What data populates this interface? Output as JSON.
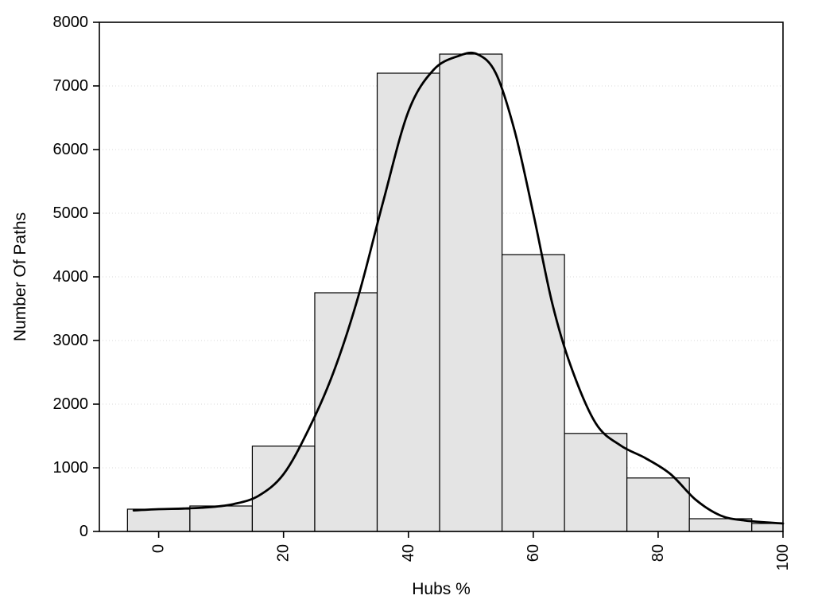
{
  "chart_data": {
    "type": "bar",
    "subtype": "histogram-with-density-curve",
    "title": "",
    "xlabel": "Hubs %",
    "ylabel": "Number Of Paths",
    "xlim": [
      -9.5,
      100
    ],
    "ylim": [
      0,
      8000
    ],
    "x_ticks": [
      0,
      20,
      40,
      60,
      80,
      100
    ],
    "y_ticks": [
      0,
      1000,
      2000,
      3000,
      4000,
      5000,
      6000,
      7000,
      8000
    ],
    "x_tick_rotation": -90,
    "grid": "horizontal-dotted",
    "legend": "none",
    "colors": {
      "bar_fill": "#e4e4e4",
      "bar_stroke": "#000000",
      "curve": "#000000",
      "frame": "#000000",
      "grid": "#d8d8d8",
      "background": "#ffffff"
    },
    "bins": [
      {
        "x0": -5,
        "x1": 5,
        "count": 350
      },
      {
        "x0": 5,
        "x1": 15,
        "count": 400
      },
      {
        "x0": 15,
        "x1": 25,
        "count": 1340
      },
      {
        "x0": 25,
        "x1": 35,
        "count": 3750
      },
      {
        "x0": 35,
        "x1": 45,
        "count": 7200
      },
      {
        "x0": 45,
        "x1": 55,
        "count": 7500
      },
      {
        "x0": 55,
        "x1": 65,
        "count": 4350
      },
      {
        "x0": 65,
        "x1": 75,
        "count": 1540
      },
      {
        "x0": 75,
        "x1": 85,
        "count": 840
      },
      {
        "x0": 85,
        "x1": 95,
        "count": 200
      },
      {
        "x0": 95,
        "x1": 100,
        "count": 125
      }
    ],
    "density_curve": [
      [
        -4,
        330
      ],
      [
        0,
        350
      ],
      [
        4,
        360
      ],
      [
        8,
        380
      ],
      [
        12,
        430
      ],
      [
        16,
        560
      ],
      [
        20,
        900
      ],
      [
        24,
        1600
      ],
      [
        28,
        2500
      ],
      [
        32,
        3700
      ],
      [
        36,
        5200
      ],
      [
        40,
        6600
      ],
      [
        44,
        7250
      ],
      [
        48,
        7470
      ],
      [
        51,
        7500
      ],
      [
        54,
        7200
      ],
      [
        57,
        6300
      ],
      [
        60,
        5000
      ],
      [
        63,
        3600
      ],
      [
        66,
        2600
      ],
      [
        70,
        1700
      ],
      [
        74,
        1350
      ],
      [
        78,
        1150
      ],
      [
        82,
        900
      ],
      [
        86,
        500
      ],
      [
        90,
        250
      ],
      [
        94,
        170
      ],
      [
        100,
        125
      ]
    ]
  }
}
